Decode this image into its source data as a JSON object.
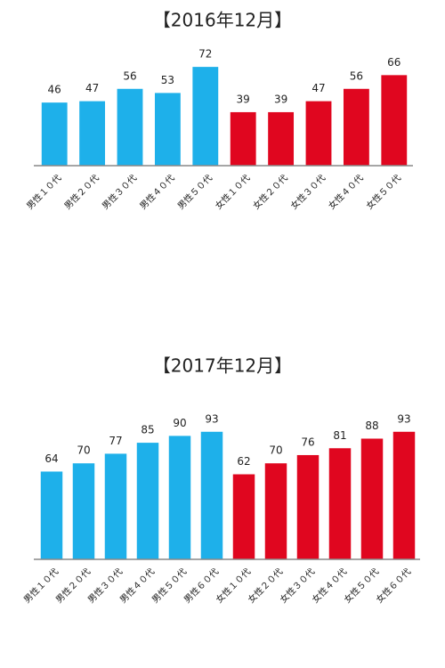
{
  "chart_data": [
    {
      "type": "bar",
      "title": "【2016年12月】",
      "categories": [
        "男性１０代",
        "男性２０代",
        "男性３０代",
        "男性４０代",
        "男性５０代",
        "女性１０代",
        "女性２０代",
        "女性３０代",
        "女性４０代",
        "女性５０代"
      ],
      "values": [
        46,
        47,
        56,
        53,
        72,
        39,
        39,
        47,
        56,
        66
      ],
      "colors": [
        "#1eb0ea",
        "#1eb0ea",
        "#1eb0ea",
        "#1eb0ea",
        "#1eb0ea",
        "#e0061f",
        "#e0061f",
        "#e0061f",
        "#e0061f",
        "#e0061f"
      ]
    },
    {
      "type": "bar",
      "title": "【2017年12月】",
      "categories": [
        "男性１０代",
        "男性２０代",
        "男性３０代",
        "男性４０代",
        "男性５０代",
        "男性６０代",
        "女性１０代",
        "女性２０代",
        "女性３０代",
        "女性４０代",
        "女性５０代",
        "女性６０代"
      ],
      "values": [
        64,
        70,
        77,
        85,
        90,
        93,
        62,
        70,
        76,
        81,
        88,
        93
      ],
      "colors": [
        "#1eb0ea",
        "#1eb0ea",
        "#1eb0ea",
        "#1eb0ea",
        "#1eb0ea",
        "#1eb0ea",
        "#e0061f",
        "#e0061f",
        "#e0061f",
        "#e0061f",
        "#e0061f",
        "#e0061f"
      ]
    }
  ]
}
